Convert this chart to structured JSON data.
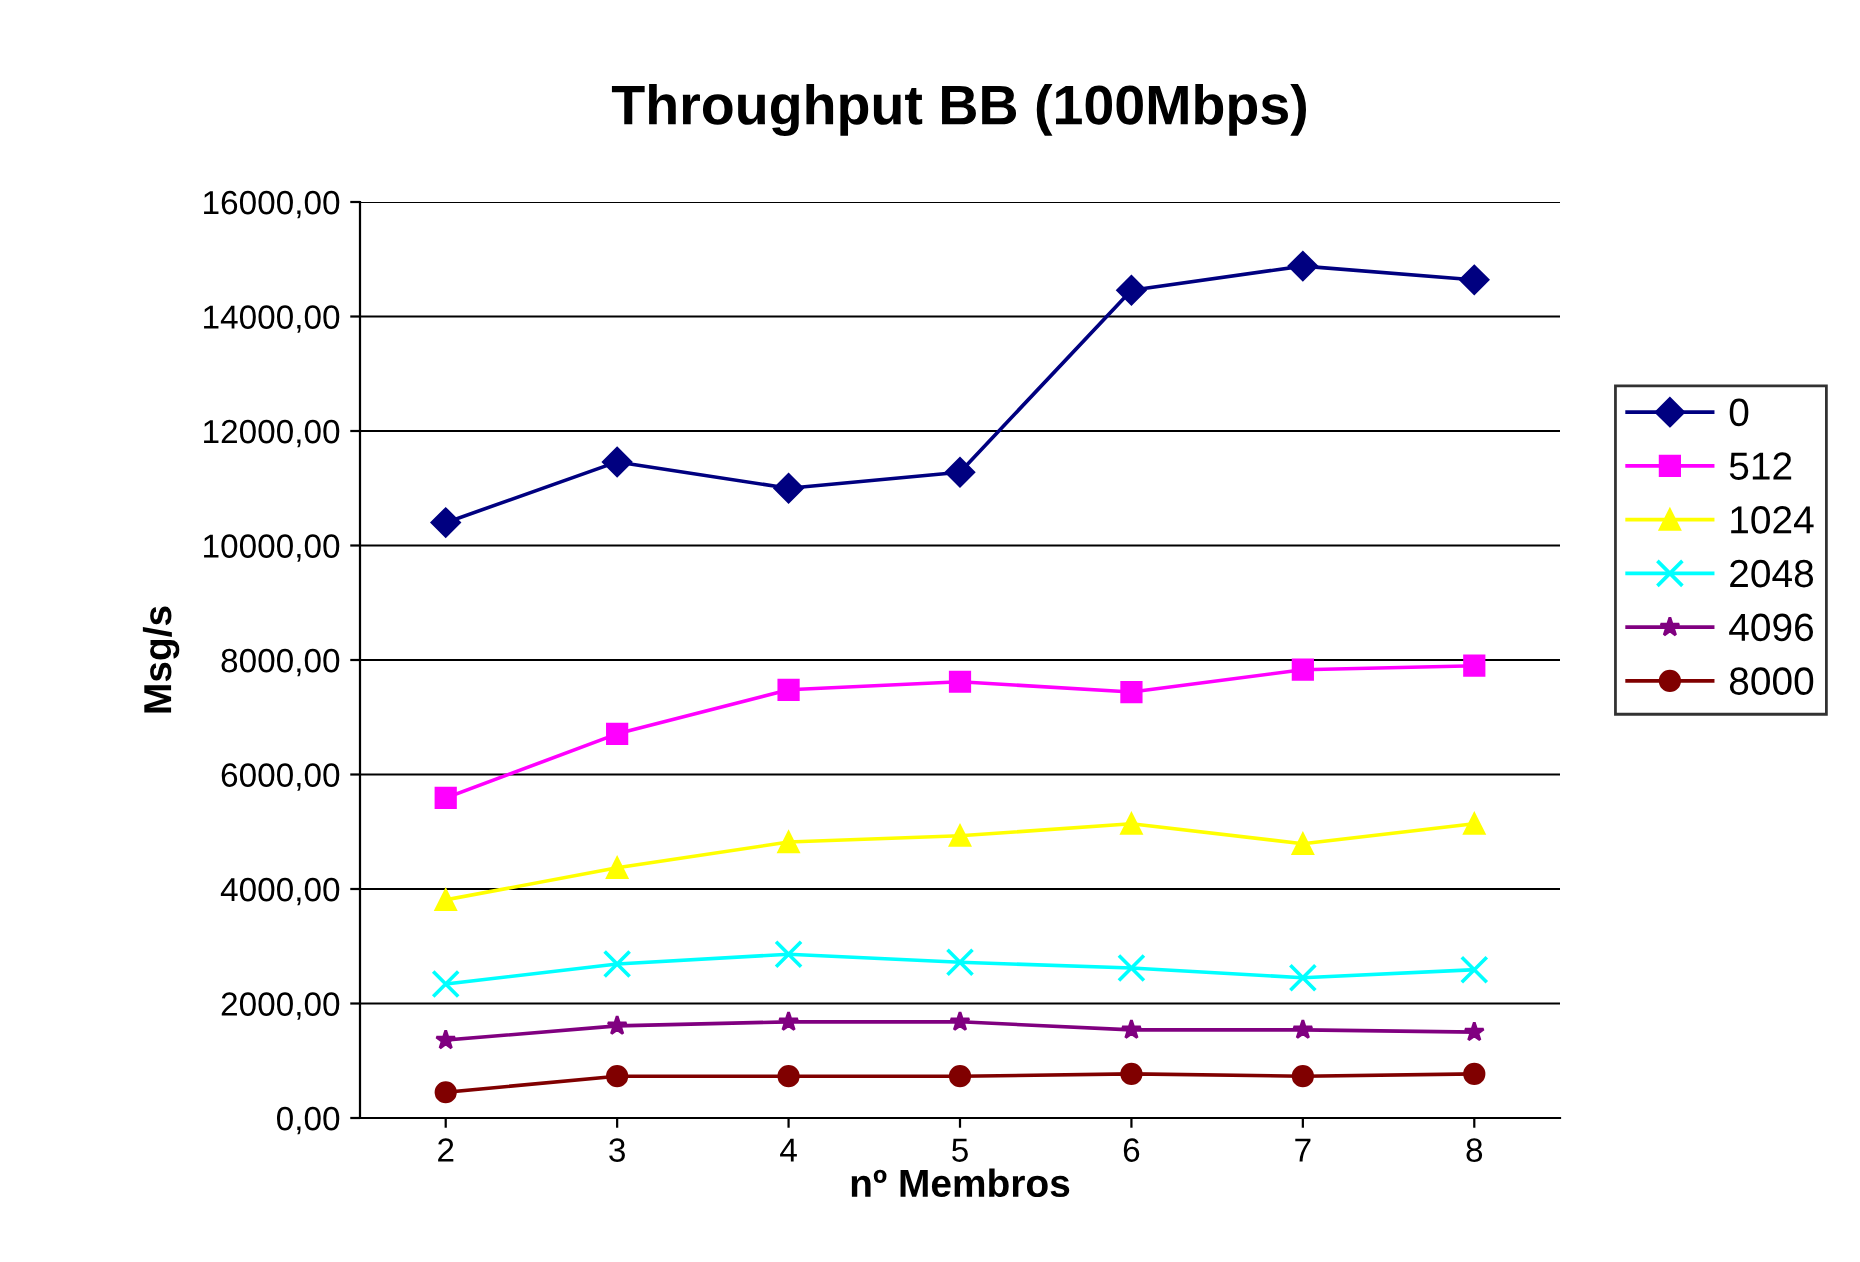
{
  "chart_data": {
    "type": "line",
    "title": "Throughput BB (100Mbps)",
    "xlabel": "nº Membros",
    "ylabel": "Msg/s",
    "categories": [
      "2",
      "3",
      "4",
      "5",
      "6",
      "7",
      "8"
    ],
    "ylim": [
      0,
      16000
    ],
    "yticks": [
      {
        "value": 0,
        "label": "0,00"
      },
      {
        "value": 2000,
        "label": "2000,00"
      },
      {
        "value": 4000,
        "label": "4000,00"
      },
      {
        "value": 6000,
        "label": "6000,00"
      },
      {
        "value": 8000,
        "label": "8000,00"
      },
      {
        "value": 10000,
        "label": "10000,00"
      },
      {
        "value": 12000,
        "label": "12000,00"
      },
      {
        "value": 14000,
        "label": "14000,00"
      },
      {
        "value": 16000,
        "label": "16000,00"
      }
    ],
    "grid": "y",
    "legend": "right",
    "series": [
      {
        "name": "0",
        "color": "#000080",
        "marker": "diamond",
        "values": [
          10400,
          11460,
          11000,
          11280,
          14460,
          14880,
          14640
        ]
      },
      {
        "name": "512",
        "color": "#ff00ff",
        "marker": "square",
        "values": [
          5590,
          6710,
          7480,
          7620,
          7440,
          7830,
          7900
        ]
      },
      {
        "name": "1024",
        "color": "#ffff00",
        "marker": "triangle",
        "values": [
          3810,
          4370,
          4820,
          4930,
          5140,
          4790,
          5140
        ]
      },
      {
        "name": "2048",
        "color": "#00ffff",
        "marker": "cross",
        "values": [
          2340,
          2690,
          2860,
          2720,
          2620,
          2450,
          2590
        ]
      },
      {
        "name": "4096",
        "color": "#800080",
        "marker": "star",
        "values": [
          1360,
          1610,
          1680,
          1680,
          1540,
          1540,
          1500
        ]
      },
      {
        "name": "8000",
        "color": "#800000",
        "marker": "circle",
        "values": [
          450,
          730,
          730,
          730,
          770,
          730,
          770
        ]
      }
    ]
  }
}
